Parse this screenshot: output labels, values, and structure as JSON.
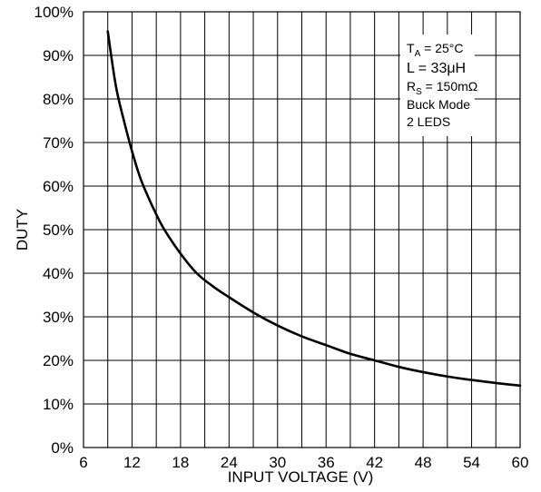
{
  "chart_data": {
    "type": "line",
    "title": "",
    "xlabel": "INPUT VOLTAGE (V)",
    "ylabel": "DUTY",
    "xlim": [
      6,
      60
    ],
    "ylim": [
      0,
      100
    ],
    "x_ticks": [
      "6",
      "12",
      "18",
      "24",
      "30",
      "36",
      "42",
      "48",
      "54",
      "60"
    ],
    "y_ticks": [
      "0%",
      "10%",
      "20%",
      "30%",
      "40%",
      "50%",
      "60%",
      "70%",
      "80%",
      "90%",
      "100%"
    ],
    "x_minor_step": 3,
    "grid": true,
    "legend": "none",
    "series": [
      {
        "color": "#000000",
        "x": [
          9,
          10,
          11,
          12,
          13,
          14,
          15,
          16,
          18,
          20,
          22,
          24,
          27,
          30,
          33,
          36,
          39,
          42,
          45,
          48,
          51,
          54,
          57,
          60
        ],
        "y": [
          95.5,
          83,
          75,
          68,
          62,
          57.5,
          53.5,
          50,
          44.5,
          40,
          37,
          34.5,
          31,
          28,
          25.5,
          23.5,
          21.5,
          20,
          18.5,
          17.3,
          16.3,
          15.5,
          14.8,
          14.2
        ]
      }
    ],
    "annotations": {
      "line1_main": "T",
      "line1_sub": "A",
      "line1_rest": " = 25°C",
      "line2": "L = 33μH",
      "line3_main": "R",
      "line3_sub": "S",
      "line3_rest": " = 150mΩ",
      "line4": "Buck Mode",
      "line5": "2 LEDS"
    }
  }
}
